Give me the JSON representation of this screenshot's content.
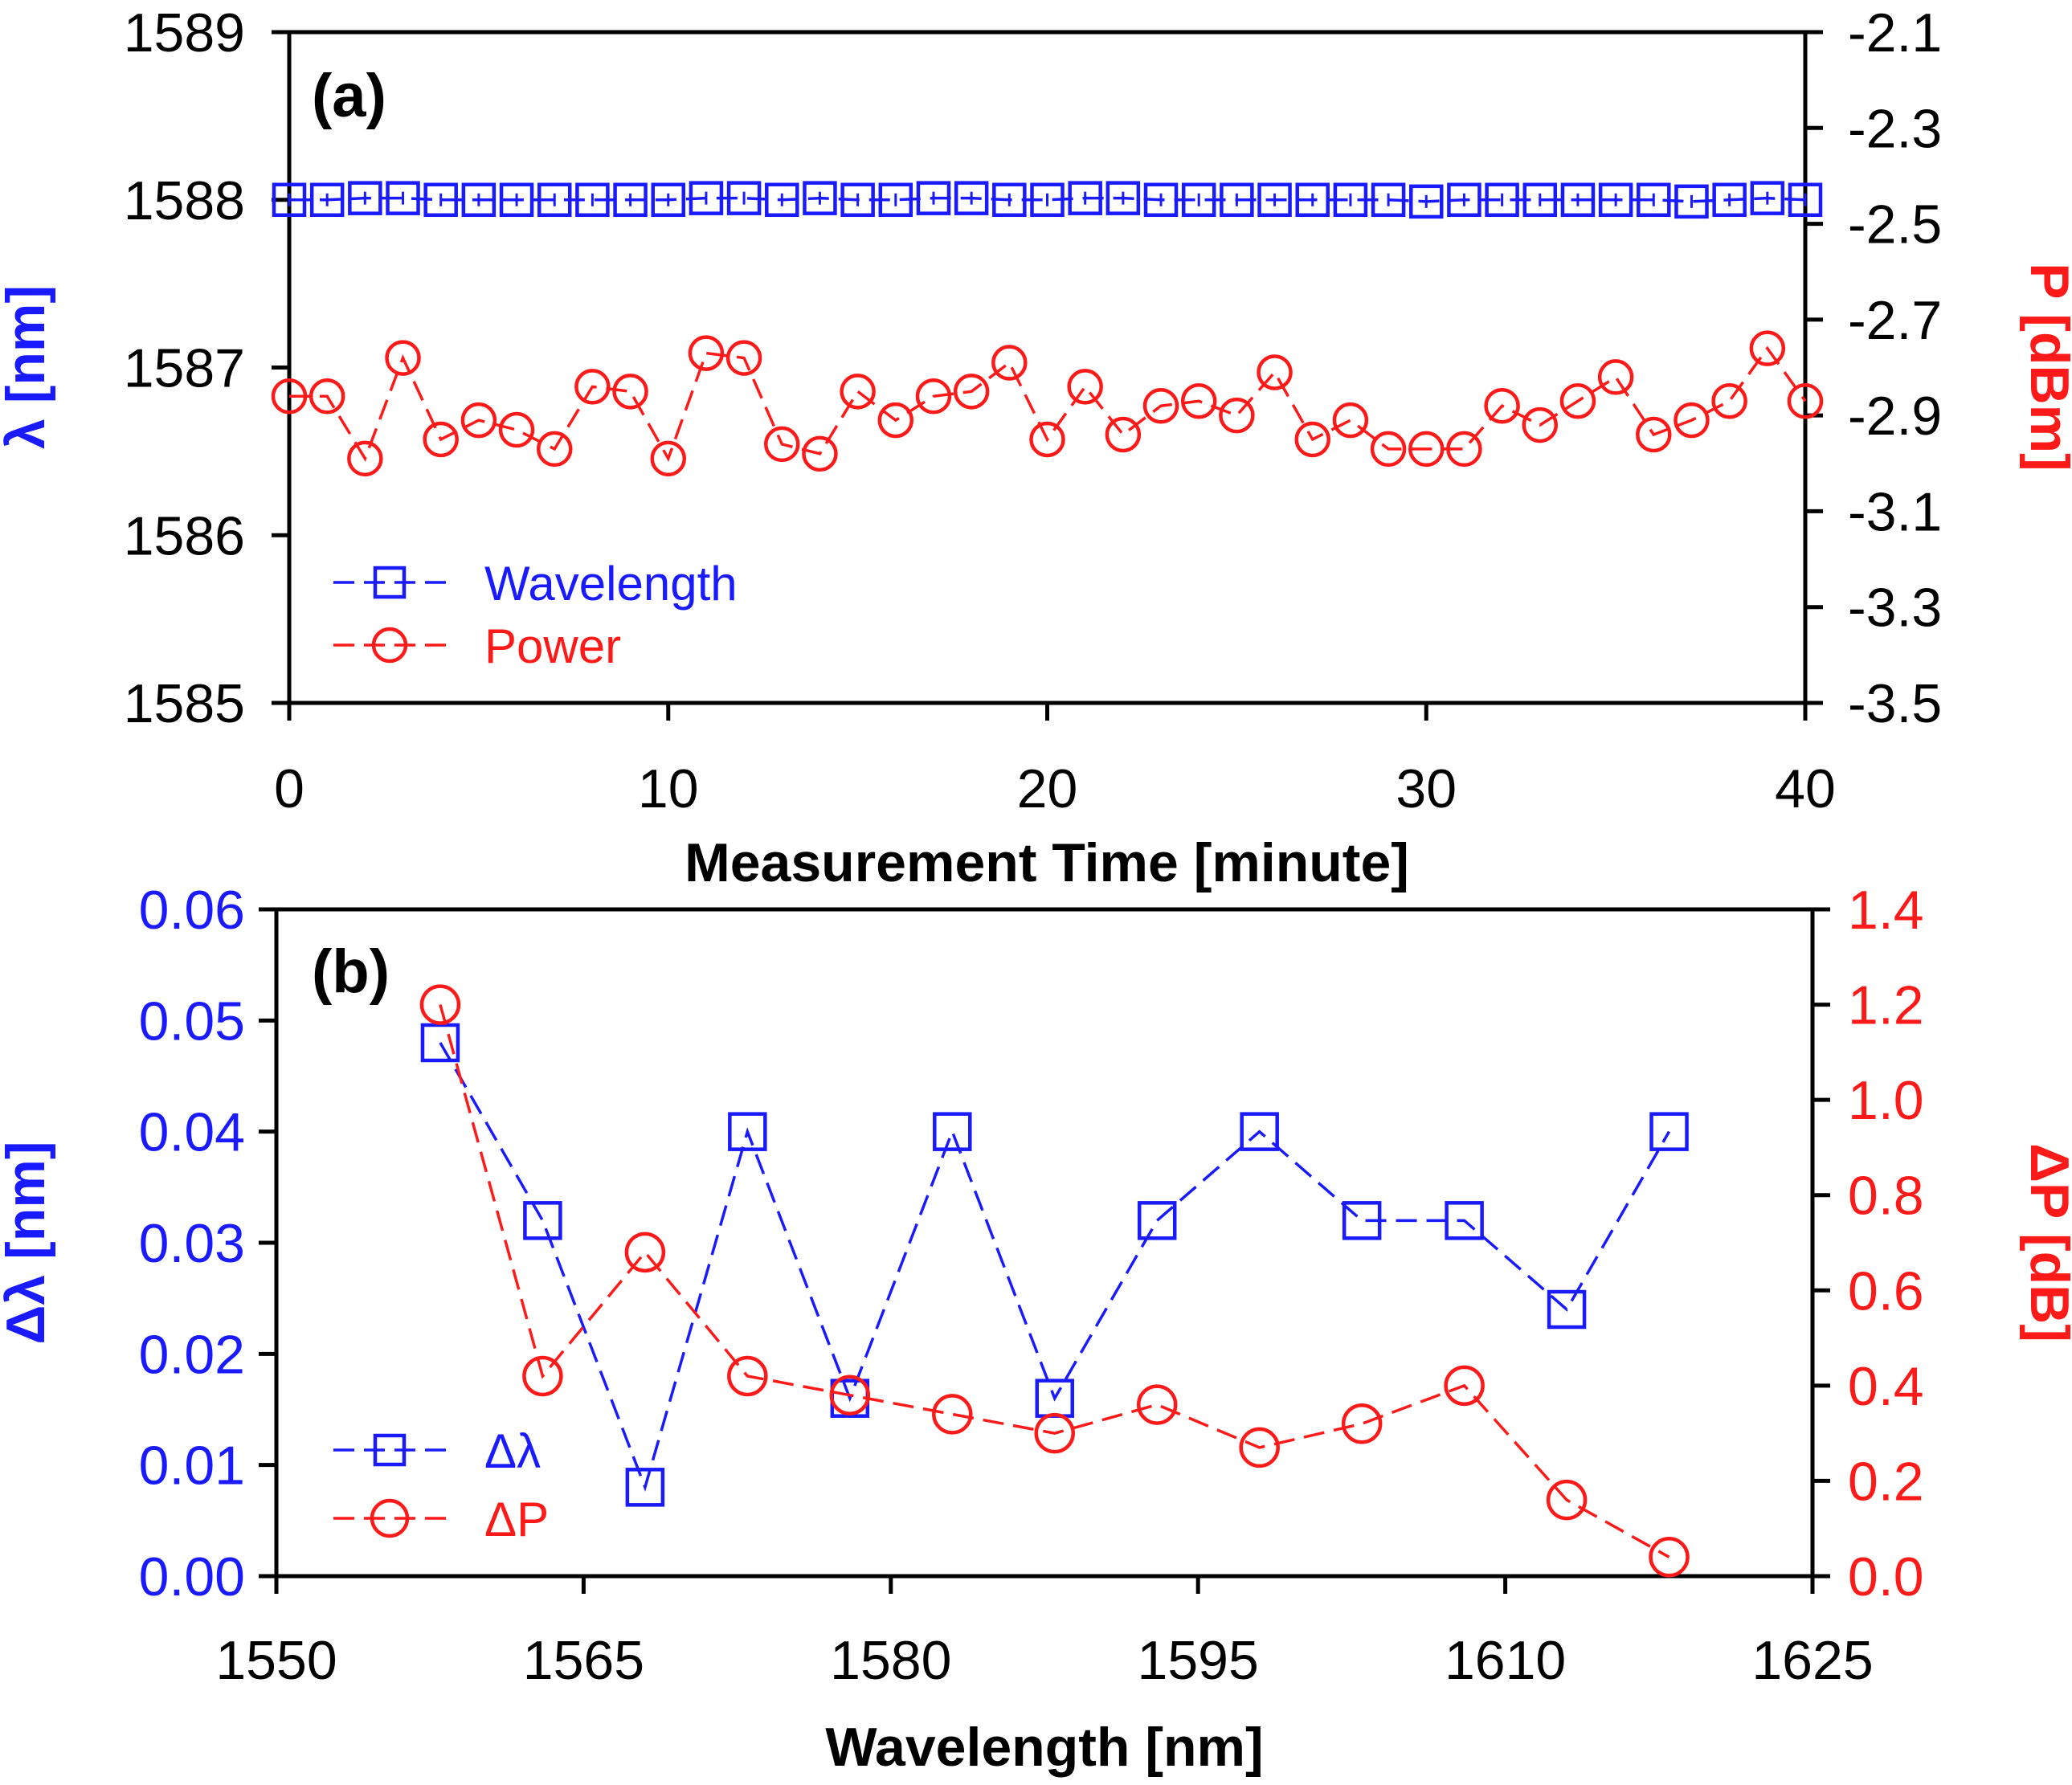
{
  "colors": {
    "wavelength": "#1a1aff",
    "power": "#ff1a1a",
    "axis": "#000000"
  },
  "chart_data": [
    {
      "panel_label": "(a)",
      "type": "line",
      "xlabel": "Measurement Time [minute]",
      "ylabel_left": "λ [nm]",
      "ylabel_right": "P [dBm]",
      "xlim": [
        0,
        40
      ],
      "ylim_left": [
        1585,
        1589
      ],
      "ylim_right": [
        -3.5,
        -2.1
      ],
      "x_ticks": [
        "0",
        "10",
        "20",
        "30",
        "40"
      ],
      "y_left_ticks": [
        "1585",
        "1586",
        "1587",
        "1588",
        "1589"
      ],
      "y_right_ticks": [
        "-3.5",
        "-3.3",
        "-3.1",
        "-2.9",
        "-2.7",
        "-2.5",
        "-2.3",
        "-2.1"
      ],
      "x": [
        0,
        1,
        2,
        3,
        4,
        5,
        6,
        7,
        8,
        9,
        10,
        11,
        12,
        13,
        14,
        15,
        16,
        17,
        18,
        19,
        20,
        21,
        22,
        23,
        24,
        25,
        26,
        27,
        28,
        29,
        30,
        31,
        32,
        33,
        34,
        35,
        36,
        37,
        38,
        39,
        40
      ],
      "series": [
        {
          "name": "Wavelength",
          "axis": "left",
          "marker": "square",
          "values": [
            1588.0,
            1588.0,
            1588.01,
            1588.01,
            1588.0,
            1588.0,
            1588.0,
            1588.0,
            1588.0,
            1588.0,
            1588.0,
            1588.01,
            1588.01,
            1588.0,
            1588.01,
            1588.0,
            1588.0,
            1588.01,
            1588.01,
            1588.0,
            1588.0,
            1588.01,
            1588.01,
            1588.0,
            1588.0,
            1588.0,
            1588.0,
            1588.0,
            1588.0,
            1588.0,
            1587.99,
            1588.0,
            1588.0,
            1588.0,
            1588.0,
            1588.0,
            1588.0,
            1587.99,
            1588.0,
            1588.01,
            1588.0
          ]
        },
        {
          "name": "Power",
          "axis": "right",
          "marker": "circle",
          "values": [
            -2.86,
            -2.86,
            -2.99,
            -2.78,
            -2.95,
            -2.91,
            -2.93,
            -2.97,
            -2.84,
            -2.85,
            -2.99,
            -2.77,
            -2.78,
            -2.96,
            -2.98,
            -2.85,
            -2.91,
            -2.86,
            -2.85,
            -2.79,
            -2.95,
            -2.84,
            -2.94,
            -2.88,
            -2.87,
            -2.9,
            -2.81,
            -2.95,
            -2.91,
            -2.97,
            -2.97,
            -2.97,
            -2.88,
            -2.92,
            -2.87,
            -2.82,
            -2.94,
            -2.91,
            -2.87,
            -2.76,
            -2.87
          ]
        }
      ],
      "legend": [
        "Wavelength",
        "Power"
      ]
    },
    {
      "panel_label": "(b)",
      "type": "line",
      "xlabel": "Wavelength [nm]",
      "ylabel_left": "Δλ [nm]",
      "ylabel_right": "ΔP [dB]",
      "xlim": [
        1550,
        1625
      ],
      "ylim_left": [
        0,
        0.06
      ],
      "ylim_right": [
        0,
        1.4
      ],
      "x_ticks": [
        "1550",
        "1565",
        "1580",
        "1595",
        "1610",
        "1625"
      ],
      "y_left_ticks": [
        "0.00",
        "0.01",
        "0.02",
        "0.03",
        "0.04",
        "0.05",
        "0.06"
      ],
      "y_right_ticks": [
        "0.0",
        "0.2",
        "0.4",
        "0.6",
        "0.8",
        "1.0",
        "1.2",
        "1.4"
      ],
      "x": [
        1558,
        1563,
        1568,
        1573,
        1578,
        1583,
        1588,
        1593,
        1598,
        1603,
        1608,
        1613,
        1618
      ],
      "series": [
        {
          "name": "Δλ",
          "axis": "left",
          "marker": "square",
          "values": [
            0.048,
            0.032,
            0.008,
            0.04,
            0.016,
            0.04,
            0.016,
            0.032,
            0.04,
            0.032,
            0.032,
            0.024,
            0.04
          ]
        },
        {
          "name": "ΔP",
          "axis": "right",
          "marker": "circle",
          "values": [
            1.2,
            0.42,
            0.68,
            0.42,
            0.38,
            0.34,
            0.3,
            0.36,
            0.27,
            0.32,
            0.4,
            0.16,
            0.04
          ]
        }
      ],
      "legend": [
        "Δλ",
        "ΔP"
      ]
    }
  ]
}
